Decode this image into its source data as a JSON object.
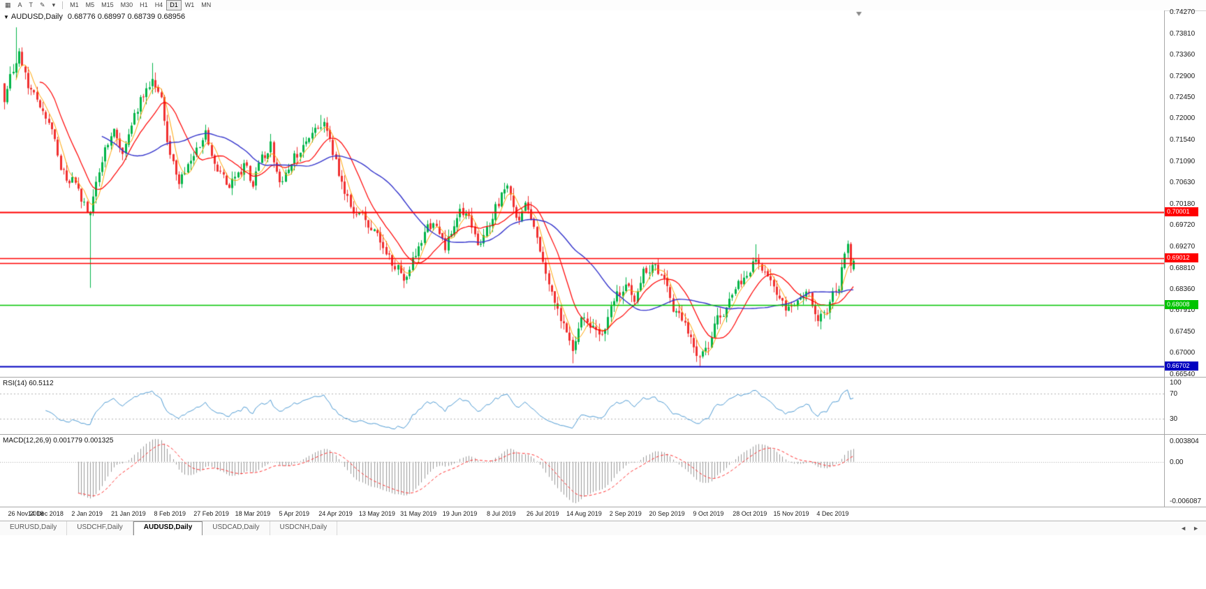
{
  "toolbar": {
    "icons": [
      {
        "name": "charts-icon",
        "glyph": "▦"
      },
      {
        "name": "cursor-icon",
        "glyph": "A"
      },
      {
        "name": "text-label-icon",
        "glyph": "T"
      },
      {
        "name": "draw-tools-icon",
        "glyph": "✎"
      },
      {
        "name": "draw-tools-dropdown-icon",
        "glyph": "▾"
      }
    ],
    "timeframes": [
      {
        "label": "M1"
      },
      {
        "label": "M5"
      },
      {
        "label": "M15"
      },
      {
        "label": "M30"
      },
      {
        "label": "H1"
      },
      {
        "label": "H4"
      },
      {
        "label": "D1",
        "active": true
      },
      {
        "label": "W1"
      },
      {
        "label": "MN"
      }
    ]
  },
  "chart": {
    "collapse_glyph": "▼",
    "title_symbol": "AUDUSD,Daily",
    "title_ohlc": "0.68776 0.68997 0.68739 0.68956"
  },
  "chart_data": {
    "type": "candlestick",
    "symbol": "AUDUSD",
    "timeframe": "Daily",
    "bars": 288,
    "last_ohlc": {
      "open": 0.68776,
      "high": 0.68997,
      "low": 0.68739,
      "close": 0.68956
    },
    "close_anchors": [
      [
        0,
        0.7228
      ],
      [
        3,
        0.731
      ],
      [
        5,
        0.7345
      ],
      [
        8,
        0.728
      ],
      [
        11,
        0.723
      ],
      [
        14,
        0.721
      ],
      [
        17,
        0.7145
      ],
      [
        20,
        0.7085
      ],
      [
        24,
        0.7055
      ],
      [
        28,
        0.7005
      ],
      [
        29,
        0.6995
      ],
      [
        31,
        0.7075
      ],
      [
        34,
        0.714
      ],
      [
        37,
        0.7175
      ],
      [
        40,
        0.713
      ],
      [
        42,
        0.716
      ],
      [
        46,
        0.723
      ],
      [
        50,
        0.729
      ],
      [
        53,
        0.723
      ],
      [
        56,
        0.712
      ],
      [
        59,
        0.707
      ],
      [
        62,
        0.71
      ],
      [
        65,
        0.7145
      ],
      [
        68,
        0.7165
      ],
      [
        70,
        0.7125
      ],
      [
        73,
        0.7085
      ],
      [
        76,
        0.704
      ],
      [
        79,
        0.708
      ],
      [
        82,
        0.7105
      ],
      [
        84,
        0.707
      ],
      [
        87,
        0.7115
      ],
      [
        90,
        0.7135
      ],
      [
        93,
        0.7075
      ],
      [
        96,
        0.709
      ],
      [
        98,
        0.711
      ],
      [
        101,
        0.7135
      ],
      [
        104,
        0.717
      ],
      [
        107,
        0.7195
      ],
      [
        110,
        0.7155
      ],
      [
        112,
        0.711
      ],
      [
        115,
        0.703
      ],
      [
        118,
        0.699
      ],
      [
        121,
        0.7005
      ],
      [
        124,
        0.6965
      ],
      [
        126,
        0.6945
      ],
      [
        129,
        0.691
      ],
      [
        132,
        0.6875
      ],
      [
        135,
        0.6865
      ],
      [
        138,
        0.6905
      ],
      [
        140,
        0.693
      ],
      [
        143,
        0.6965
      ],
      [
        146,
        0.6985
      ],
      [
        149,
        0.6925
      ],
      [
        152,
        0.6965
      ],
      [
        154,
        0.7
      ],
      [
        157,
        0.699
      ],
      [
        160,
        0.6925
      ],
      [
        163,
        0.6965
      ],
      [
        166,
        0.701
      ],
      [
        168,
        0.704
      ],
      [
        170,
        0.7045
      ],
      [
        173,
        0.699
      ],
      [
        176,
        0.7015
      ],
      [
        179,
        0.6975
      ],
      [
        182,
        0.69
      ],
      [
        185,
        0.684
      ],
      [
        188,
        0.6775
      ],
      [
        190,
        0.6745
      ],
      [
        192,
        0.6705
      ],
      [
        194,
        0.6755
      ],
      [
        196,
        0.678
      ],
      [
        199,
        0.6765
      ],
      [
        202,
        0.674
      ],
      [
        205,
        0.6785
      ],
      [
        208,
        0.682
      ],
      [
        210,
        0.684
      ],
      [
        213,
        0.681
      ],
      [
        216,
        0.686
      ],
      [
        219,
        0.6885
      ],
      [
        222,
        0.6865
      ],
      [
        224,
        0.6845
      ],
      [
        227,
        0.679
      ],
      [
        230,
        0.676
      ],
      [
        233,
        0.672
      ],
      [
        235,
        0.6695
      ],
      [
        238,
        0.672
      ],
      [
        241,
        0.6765
      ],
      [
        244,
        0.68
      ],
      [
        247,
        0.6835
      ],
      [
        250,
        0.6865
      ],
      [
        252,
        0.6885
      ],
      [
        254,
        0.69
      ],
      [
        257,
        0.6865
      ],
      [
        260,
        0.683
      ],
      [
        263,
        0.6795
      ],
      [
        266,
        0.6785
      ],
      [
        269,
        0.6805
      ],
      [
        272,
        0.683
      ],
      [
        275,
        0.6775
      ],
      [
        278,
        0.68
      ],
      [
        280,
        0.6845
      ],
      [
        282,
        0.686
      ],
      [
        284,
        0.69
      ],
      [
        285,
        0.6925
      ],
      [
        286,
        0.6878
      ],
      [
        287,
        0.6896
      ]
    ],
    "wick_overrides": [
      {
        "i": 4,
        "high": 0.7394
      },
      {
        "i": 29,
        "open": 0.6993,
        "close": 0.6999,
        "low": 0.6838
      },
      {
        "i": 50,
        "high": 0.7318
      },
      {
        "i": 107,
        "high": 0.7207
      },
      {
        "i": 192,
        "low": 0.6677
      },
      {
        "i": 235,
        "low": 0.6671
      },
      {
        "i": 254,
        "high": 0.6931
      },
      {
        "i": 285,
        "high": 0.6939
      },
      {
        "i": 287,
        "open": 0.68776,
        "high": 0.68997,
        "low": 0.68739,
        "close": 0.68956
      }
    ],
    "colors": {
      "up": "#00B448",
      "down": "#F02F2F",
      "ma_fast": "#FFA500",
      "ma_mid": "#FF0000",
      "ma_slow": "#3333CC"
    },
    "ma_periods": {
      "fast": 5,
      "mid": 13,
      "slow": 34
    },
    "price_axis": {
      "top_price": 0.7427,
      "bottom_price": 0.6654,
      "ticks": [
        "0.74270",
        "0.73810",
        "0.73360",
        "0.72900",
        "0.72450",
        "0.72000",
        "0.71540",
        "0.71090",
        "0.70630",
        "0.70180",
        "0.69720",
        "0.69270",
        "0.68810",
        "0.68360",
        "0.67910",
        "0.67450",
        "0.67000",
        "0.66540"
      ]
    },
    "hlines": [
      {
        "price": 0.70001,
        "color": "#FF0000",
        "lw": 2,
        "tag": "0.70001"
      },
      {
        "price": 0.69012,
        "color": "#FF0000",
        "lw": 1.5,
        "tag": "0.69012"
      },
      {
        "price": 0.68905,
        "color": "#FF0000",
        "lw": 1.5
      },
      {
        "price": 0.68008,
        "color": "#00C400",
        "lw": 1.5,
        "tag": "0.68008"
      },
      {
        "price": 0.66702,
        "color": "#0000C0",
        "lw": 2,
        "tag": "0.66702"
      }
    ],
    "date_axis": {
      "bar_step": 14,
      "labels": [
        "26 Nov 2018",
        "14 Dec 2018",
        "2 Jan 2019",
        "21 Jan 2019",
        "8 Feb 2019",
        "27 Feb 2019",
        "18 Mar 2019",
        "5 Apr 2019",
        "24 Apr 2019",
        "13 May 2019",
        "31 May 2019",
        "19 Jun 2019",
        "8 Jul 2019",
        "26 Jul 2019",
        "14 Aug 2019",
        "2 Sep 2019",
        "20 Sep 2019",
        "9 Oct 2019",
        "28 Oct 2019",
        "15 Nov 2019",
        "4 Dec 2019"
      ]
    },
    "rsi": {
      "label": "RSI(14) 60.5112",
      "period": 14,
      "current": 60.5112,
      "levels": [
        70,
        30
      ],
      "axis_labels": [
        {
          "value": 100,
          "text": "100"
        },
        {
          "value": 70,
          "text": "70"
        },
        {
          "value": 30,
          "text": "30"
        }
      ],
      "color": "#4E9BD4",
      "level_color": "#b4b4b4"
    },
    "macd": {
      "label": "MACD(12,26,9) 0.001779 0.001325",
      "fast": 12,
      "slow": 26,
      "signal": 9,
      "current_macd": 0.001779,
      "current_signal": 0.001325,
      "axis_labels": [
        "0.003804",
        "0.00",
        "-0.006087"
      ],
      "hist_color": "#9A9A9A",
      "signal_color": "#FF3030",
      "zero_color": "#aaaaaa"
    }
  },
  "tabs": {
    "items": [
      {
        "label": "EURUSD,Daily"
      },
      {
        "label": "USDCHF,Daily"
      },
      {
        "label": "AUDUSD,Daily",
        "active": true
      },
      {
        "label": "USDCAD,Daily"
      },
      {
        "label": "USDCNH,Daily"
      }
    ],
    "scroll_left_glyph": "◄",
    "scroll_right_glyph": "►"
  }
}
